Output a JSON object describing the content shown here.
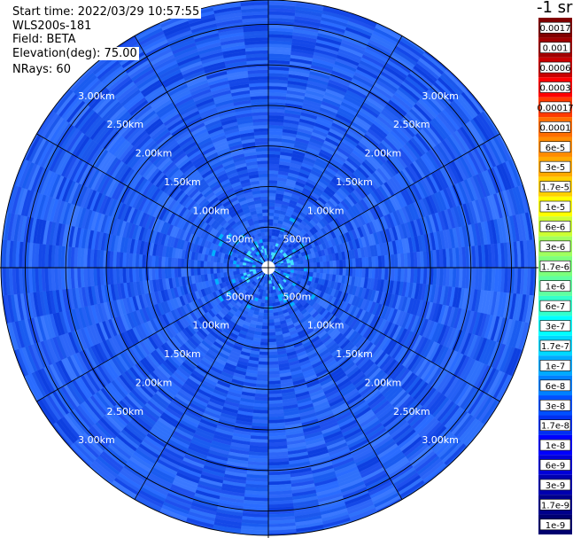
{
  "header": {
    "start_time": "Start time: 2022/03/29 10:57:55",
    "instrument": "WLS200s-181",
    "field": "Field: BETA",
    "elevation": "Elevation(deg): 75.00",
    "nrays": "NRays: 60"
  },
  "colorbar": {
    "units": "-1 sr",
    "labels": [
      "0.0017",
      "0.001",
      "0.0006",
      "0.0003",
      "0.00017",
      "0.0001",
      "6e-5",
      "3e-5",
      "1.7e-5",
      "1e-5",
      "6e-6",
      "3e-6",
      "1.7e-6",
      "1e-6",
      "6e-7",
      "3e-7",
      "1.7e-7",
      "1e-7",
      "6e-8",
      "3e-8",
      "1.7e-8",
      "1e-8",
      "6e-9",
      "3e-9",
      "1.7e-9",
      "1e-9"
    ],
    "colors": [
      "#800000",
      "#a00000",
      "#c80000",
      "#ff0000",
      "#ff3a00",
      "#ff6e00",
      "#ff8c00",
      "#ffaa00",
      "#ffd000",
      "#ffff00",
      "#ccff33",
      "#a0ff60",
      "#7cff7c",
      "#60ffa0",
      "#33ffcc",
      "#00ffff",
      "#00d8ff",
      "#00aaff",
      "#0080ff",
      "#0050ff",
      "#0030f0",
      "#0000ff",
      "#0000d8",
      "#0000b0",
      "#00008b",
      "#000070"
    ]
  },
  "chart_data": {
    "type": "polar-ppi",
    "field": "BETA",
    "units": "-1 sr",
    "nrays": 60,
    "elevation_deg": 75.0,
    "range_rings_m": [
      500,
      1000,
      1500,
      2000,
      2500,
      3000
    ],
    "ring_labels": [
      "500m",
      "1.00km",
      "1.50km",
      "2.00km",
      "2.50km",
      "3.00km"
    ],
    "max_range_m": 3300,
    "azimuth_spokes_deg": [
      0,
      30,
      60,
      90,
      120,
      150,
      180,
      210,
      240,
      270,
      300,
      330
    ],
    "blank_radius_m": 85,
    "color_scale": "log",
    "value_range": [
      1e-09,
      0.0017
    ],
    "dominant_value_range": [
      1e-08,
      1e-07
    ]
  }
}
